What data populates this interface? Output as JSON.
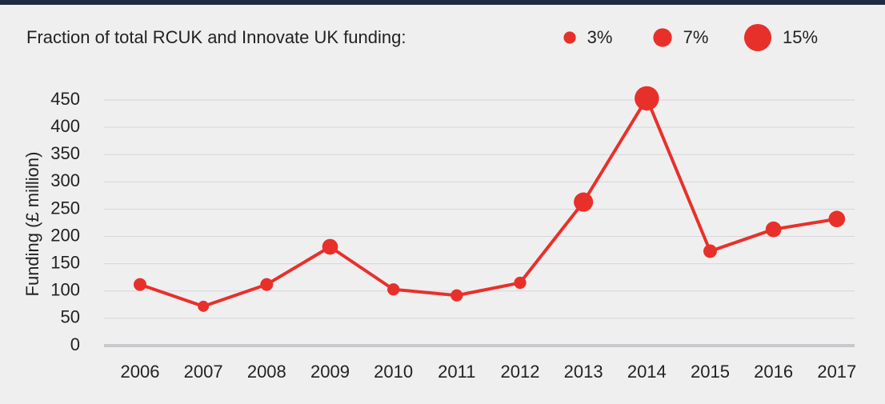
{
  "chart_data": {
    "type": "line",
    "y_label": "Funding (£ million)",
    "categories": [
      "2006",
      "2007",
      "2008",
      "2009",
      "2010",
      "2011",
      "2012",
      "2013",
      "2014",
      "2015",
      "2016",
      "2017"
    ],
    "series": [
      {
        "color": "#e8302a",
        "values": [
          112,
          72,
          112,
          181,
          103,
          92,
          115,
          263,
          453,
          173,
          213,
          232
        ],
        "sizes": [
          3.3,
          2.5,
          3.3,
          5,
          3,
          3,
          3,
          7.5,
          12,
          3.7,
          5,
          5.5
        ]
      }
    ],
    "size_legend": {
      "title": "Fraction of total RCUK and Innovate UK funding:",
      "values": [
        3,
        7,
        15
      ],
      "value_labels": [
        "3%",
        "7%",
        "15%"
      ]
    },
    "ylim": [
      0,
      450
    ],
    "yticks": [
      0,
      50,
      100,
      150,
      200,
      250,
      300,
      350,
      400,
      450
    ],
    "grid": true
  }
}
